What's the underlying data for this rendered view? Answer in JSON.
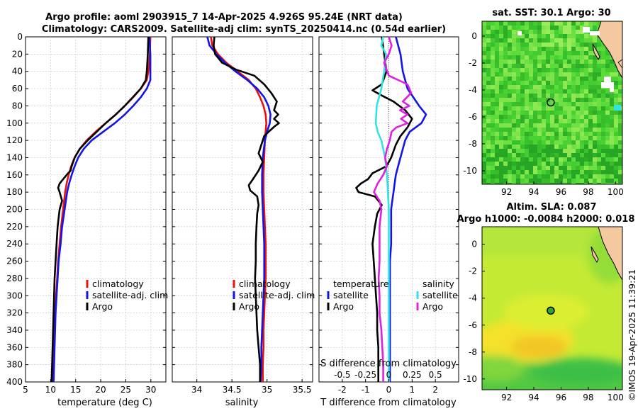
{
  "figure": {
    "title_line1": "Argo profile: aoml 2903915_7 14-Apr-2025 4.926S 95.24E (NRT data)",
    "title_line2": "Climatology: CARS2009. Satellite-adj clim: synTS_20250414.nc (0.54d earlier)",
    "watermark": "©IMOS 19-Apr-2025 11:39:21",
    "colors": {
      "red": "#e8120c",
      "blue": "#1414e6",
      "black": "#000000",
      "cyan": "#33e3e3",
      "magenta": "#e020e0"
    }
  },
  "chart_data": [
    {
      "id": "temperature",
      "type": "line",
      "xlabel": "temperature (deg C)",
      "ylabel": "",
      "xlim": [
        5,
        33
      ],
      "ylim": [
        400,
        0
      ],
      "xticks": [
        5,
        10,
        15,
        20,
        25,
        30
      ],
      "yticks": [
        0,
        20,
        40,
        60,
        80,
        100,
        120,
        140,
        160,
        180,
        200,
        220,
        240,
        260,
        280,
        300,
        320,
        340,
        360,
        380,
        400
      ],
      "legend": [
        "climatology",
        "satellite-adj. clim",
        "Argo"
      ],
      "series": [
        {
          "name": "climatology",
          "color": "red",
          "depth": [
            0,
            20,
            40,
            50,
            60,
            70,
            80,
            90,
            100,
            110,
            120,
            130,
            140,
            150,
            160,
            170,
            180,
            200,
            220,
            240,
            260,
            280,
            300,
            320,
            340,
            360,
            380,
            400
          ],
          "values": [
            29.9,
            29.8,
            29.5,
            29.2,
            28.0,
            26.5,
            24.8,
            23.0,
            21.0,
            19.0,
            17.2,
            15.8,
            14.8,
            14.1,
            13.6,
            13.2,
            12.9,
            12.5,
            12.1,
            11.8,
            11.5,
            11.3,
            11.1,
            10.9,
            10.8,
            10.7,
            10.6,
            10.5
          ]
        },
        {
          "name": "satellite-adj. clim",
          "color": "blue",
          "depth": [
            0,
            20,
            40,
            50,
            60,
            70,
            80,
            90,
            100,
            110,
            120,
            130,
            140,
            150,
            160,
            170,
            180,
            200,
            220,
            240,
            260,
            280,
            300,
            320,
            340,
            360,
            380,
            400
          ],
          "values": [
            29.7,
            29.9,
            29.9,
            29.9,
            29.2,
            28.0,
            26.5,
            24.8,
            22.8,
            20.5,
            18.2,
            16.6,
            15.5,
            14.8,
            14.2,
            13.7,
            13.3,
            12.8,
            12.3,
            12.0,
            11.6,
            11.4,
            11.2,
            11.0,
            10.9,
            10.8,
            10.7,
            10.6
          ]
        },
        {
          "name": "Argo",
          "color": "black",
          "depth": [
            0,
            20,
            40,
            50,
            60,
            70,
            80,
            90,
            100,
            110,
            120,
            130,
            140,
            150,
            155,
            160,
            165,
            170,
            175,
            180,
            190,
            200,
            220,
            240,
            260,
            280,
            300,
            320,
            340,
            360,
            380,
            400
          ],
          "values": [
            29.5,
            29.4,
            29.2,
            29.0,
            28.0,
            26.4,
            24.8,
            23.0,
            21.0,
            19.2,
            17.4,
            15.8,
            14.8,
            14.2,
            14.0,
            13.2,
            12.5,
            11.8,
            11.5,
            11.8,
            12.3,
            11.8,
            11.4,
            11.2,
            11.0,
            10.8,
            10.7,
            10.6,
            10.5,
            10.4,
            10.3,
            10.2
          ]
        }
      ]
    },
    {
      "id": "salinity",
      "type": "line",
      "xlabel": "salinity",
      "ylabel": "",
      "xlim": [
        33.65,
        35.65
      ],
      "ylim": [
        400,
        0
      ],
      "xticks": [
        34,
        34.5,
        35,
        35.5
      ],
      "xticklabels": [
        "34",
        "34.5",
        "35",
        "35.5"
      ],
      "legend": [
        "climatology",
        "satellite-adj. clim",
        "Argo"
      ],
      "series": [
        {
          "name": "climatology",
          "color": "red",
          "depth": [
            0,
            10,
            20,
            30,
            40,
            50,
            60,
            70,
            80,
            90,
            100,
            110,
            120,
            140,
            160,
            180,
            200,
            220,
            240,
            260,
            280,
            300,
            320,
            340,
            360,
            380,
            400
          ],
          "values": [
            34.2,
            34.22,
            34.3,
            34.42,
            34.58,
            34.74,
            34.84,
            34.9,
            34.95,
            34.98,
            34.99,
            34.98,
            34.97,
            34.96,
            34.95,
            34.95,
            34.96,
            34.97,
            34.98,
            34.98,
            34.98,
            34.97,
            34.96,
            34.95,
            34.95,
            34.94,
            34.94
          ]
        },
        {
          "name": "satellite-adj. clim",
          "color": "blue",
          "depth": [
            0,
            10,
            20,
            30,
            40,
            50,
            60,
            70,
            80,
            90,
            100,
            110,
            120,
            140,
            160,
            180,
            200,
            220,
            240,
            260,
            280,
            300,
            320,
            340,
            360,
            380,
            400
          ],
          "values": [
            34.15,
            34.18,
            34.28,
            34.4,
            34.55,
            34.72,
            34.86,
            34.96,
            35.02,
            35.05,
            35.04,
            35.0,
            34.97,
            34.94,
            34.93,
            34.93,
            34.94,
            34.95,
            34.96,
            34.96,
            34.96,
            34.95,
            34.94,
            34.93,
            34.92,
            34.92,
            34.91
          ]
        },
        {
          "name": "Argo",
          "color": "black",
          "depth": [
            0,
            10,
            20,
            30,
            38,
            45,
            55,
            65,
            75,
            85,
            90,
            95,
            100,
            103,
            108,
            115,
            125,
            135,
            145,
            155,
            165,
            172,
            178,
            185,
            195,
            205,
            220,
            240,
            260,
            280,
            300,
            320,
            340,
            360,
            380,
            400
          ],
          "values": [
            34.25,
            34.24,
            34.26,
            34.36,
            34.56,
            34.82,
            34.96,
            35.06,
            35.14,
            35.1,
            35.16,
            35.1,
            35.17,
            35.12,
            35.05,
            34.96,
            34.92,
            34.88,
            34.94,
            34.88,
            34.8,
            34.74,
            34.76,
            34.86,
            34.88,
            34.86,
            34.85,
            34.84,
            34.84,
            34.83,
            34.84,
            34.85,
            34.86,
            34.88,
            34.9,
            34.9
          ]
        }
      ]
    },
    {
      "id": "difference",
      "type": "line",
      "xlabel": "T difference from climatology",
      "top_label": "S difference from climatology",
      "xlim": [
        -3,
        3
      ],
      "ylim": [
        400,
        0
      ],
      "xticks": [
        -2,
        -1,
        0,
        1,
        2
      ],
      "xticklabels": [
        "-2",
        "-1",
        "0",
        "1",
        "2"
      ],
      "s_ticklabels": [
        "-0.5",
        "-0.25",
        "0",
        "0.25",
        "0.5"
      ],
      "legend_left_header": "temperature",
      "legend_right_header": "salinity",
      "legend": [
        {
          "label": "satellite",
          "color": "blue"
        },
        {
          "label": "Argo",
          "color": "black"
        },
        {
          "label": "satellite",
          "color": "cyan"
        },
        {
          "label": "Argo",
          "color": "magenta"
        }
      ],
      "series": [
        {
          "name": "T satellite",
          "color": "blue",
          "depth": [
            0,
            20,
            40,
            60,
            80,
            90,
            100,
            110,
            120,
            130,
            140,
            150,
            160,
            170,
            180,
            190,
            200,
            220,
            240,
            260,
            280,
            300,
            320,
            340,
            360,
            380,
            400
          ],
          "values": [
            0.3,
            0.5,
            0.6,
            0.8,
            1.3,
            1.6,
            1.4,
            0.9,
            0.7,
            0.6,
            0.5,
            0.4,
            0.3,
            0.25,
            0.2,
            0.15,
            0.1,
            0.1,
            0.1,
            0.05,
            0.05,
            0.05,
            0.05,
            0.05,
            0.05,
            0.05,
            0.05
          ]
        },
        {
          "name": "T Argo",
          "color": "black",
          "depth": [
            0,
            20,
            40,
            55,
            62,
            68,
            75,
            85,
            95,
            105,
            115,
            125,
            140,
            150,
            158,
            165,
            170,
            175,
            180,
            185,
            195,
            205,
            220,
            240,
            260,
            280,
            300,
            320,
            340,
            360,
            380,
            400
          ],
          "values": [
            -0.3,
            -0.2,
            -0.1,
            -0.3,
            -0.7,
            -0.3,
            0.2,
            0.7,
            1.0,
            0.8,
            0.5,
            0.3,
            0.1,
            -0.1,
            -0.7,
            -0.9,
            -1.2,
            -1.4,
            -1.3,
            -0.6,
            -0.3,
            -0.5,
            -0.6,
            -0.7,
            -0.65,
            -0.6,
            -0.55,
            -0.5,
            -0.5,
            -0.45,
            -0.45,
            -0.45
          ]
        },
        {
          "name": "S satellite",
          "color": "cyan",
          "depth": [
            0,
            10,
            20,
            40,
            60,
            80,
            100,
            110,
            120,
            140,
            160,
            180,
            200,
            240,
            280,
            320,
            360,
            400
          ],
          "values": [
            -0.06,
            -0.08,
            -0.03,
            -0.05,
            -0.08,
            -0.13,
            -0.14,
            -0.12,
            -0.08,
            -0.04,
            -0.02,
            -0.01,
            0.0,
            0.0,
            0.0,
            0.0,
            0.0,
            0.0
          ]
        },
        {
          "name": "S Argo",
          "color": "magenta",
          "depth": [
            0,
            10,
            20,
            30,
            45,
            55,
            65,
            75,
            80,
            85,
            90,
            95,
            100,
            105,
            110,
            120,
            130,
            140,
            150,
            160,
            170,
            180,
            190,
            200,
            220,
            240,
            260,
            280,
            300,
            320,
            340,
            360,
            380,
            400
          ],
          "values": [
            0.0,
            0.03,
            0.0,
            -0.05,
            0.0,
            0.2,
            0.24,
            0.15,
            0.22,
            0.12,
            0.2,
            0.13,
            0.2,
            0.08,
            0.03,
            0.01,
            -0.02,
            -0.04,
            -0.02,
            -0.06,
            -0.12,
            -0.16,
            -0.1,
            -0.08,
            -0.1,
            -0.1,
            -0.1,
            -0.11,
            -0.1,
            -0.1,
            -0.08,
            -0.07,
            -0.06,
            -0.06
          ]
        }
      ]
    },
    {
      "id": "sst_map",
      "type": "heatmap",
      "title": "sat. SST: 30.1 Argo: 30",
      "xticks": [
        92,
        94,
        96,
        98,
        100
      ],
      "yticks": [
        0,
        -2,
        -4,
        -6,
        -8,
        -10
      ],
      "xlim": [
        90.2,
        100.5
      ],
      "ylim": [
        -11.0,
        1.1
      ],
      "argo_lon": 95.24,
      "argo_lat": -4.926
    },
    {
      "id": "sla_map",
      "type": "heatmap",
      "title": "Altim. SLA: 0.087",
      "subtitle": "Argo h1000: -0.0084 h2000: 0.018",
      "xticks": [
        92,
        94,
        96,
        98,
        100
      ],
      "yticks": [
        0,
        -2,
        -4,
        -6,
        -8,
        -10
      ],
      "xlim": [
        90.2,
        100.5
      ],
      "ylim": [
        -10.8,
        1.3
      ],
      "argo_lon": 95.24,
      "argo_lat": -4.926
    }
  ]
}
